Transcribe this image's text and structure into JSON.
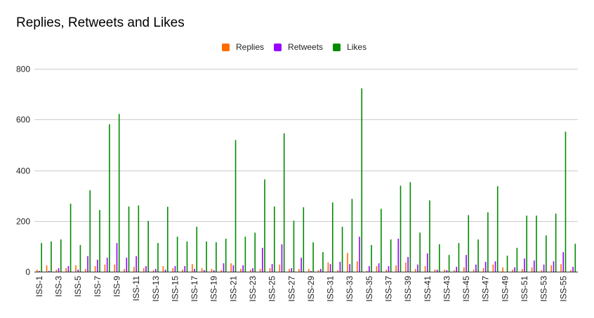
{
  "chart_data": {
    "type": "bar",
    "title": "Replies, Retweets and Likes",
    "xlabel": "",
    "ylabel": "",
    "ylim": [
      0,
      800
    ],
    "yticks": [
      0,
      200,
      400,
      600,
      800
    ],
    "grid": true,
    "legend_position": "top",
    "categories": [
      "ISS-1",
      "ISS-2",
      "ISS-3",
      "ISS-4",
      "ISS-5",
      "ISS-6",
      "ISS-7",
      "ISS-8",
      "ISS-9",
      "ISS-10",
      "ISS-11",
      "ISS-12",
      "ISS-13",
      "ISS-14",
      "ISS-15",
      "ISS-16",
      "ISS-17",
      "ISS-18",
      "ISS-19",
      "ISS-20",
      "ISS-21",
      "ISS-22",
      "ISS-23",
      "ISS-24",
      "ISS-25",
      "ISS-26",
      "ISS-27",
      "ISS-28",
      "ISS-29",
      "ISS-30",
      "ISS-31",
      "ISS-32",
      "ISS-33",
      "ISS-34",
      "ISS-35",
      "ISS-36",
      "ISS-37",
      "ISS-38",
      "ISS-39",
      "ISS-40",
      "ISS-41",
      "ISS-42",
      "ISS-43",
      "ISS-44",
      "ISS-45",
      "ISS-46",
      "ISS-47",
      "ISS-48",
      "ISS-49",
      "ISS-50",
      "ISS-51",
      "ISS-52",
      "ISS-53",
      "ISS-54",
      "ISS-55",
      "ISS-56"
    ],
    "x_tick_labels_shown": "every other category (odd)",
    "series": [
      {
        "name": "Replies",
        "color": "#ff6d01",
        "values": [
          8,
          25,
          8,
          14,
          25,
          11,
          22,
          28,
          28,
          11,
          19,
          14,
          6,
          22,
          14,
          8,
          30,
          14,
          11,
          6,
          33,
          11,
          8,
          11,
          14,
          28,
          11,
          11,
          11,
          6,
          36,
          6,
          74,
          41,
          3,
          22,
          8,
          25,
          36,
          11,
          22,
          8,
          8,
          6,
          17,
          8,
          14,
          28,
          17,
          8,
          11,
          17,
          6,
          25,
          30,
          6
        ]
      },
      {
        "name": "Retweets",
        "color": "#9900ff",
        "values": [
          3,
          3,
          14,
          22,
          8,
          61,
          47,
          55,
          113,
          55,
          61,
          22,
          11,
          8,
          22,
          22,
          11,
          6,
          6,
          33,
          25,
          25,
          14,
          94,
          30,
          108,
          14,
          55,
          3,
          11,
          30,
          39,
          30,
          138,
          22,
          33,
          22,
          130,
          58,
          28,
          72,
          8,
          6,
          19,
          66,
          28,
          39,
          41,
          0,
          17,
          52,
          44,
          28,
          41,
          77,
          19
        ]
      },
      {
        "name": "Likes",
        "color": "#008b00",
        "values": [
          113,
          119,
          127,
          268,
          105,
          321,
          243,
          581,
          622,
          257,
          261,
          200,
          113,
          256,
          138,
          119,
          177,
          119,
          116,
          130,
          519,
          138,
          154,
          364,
          257,
          546,
          201,
          254,
          116,
          77,
          273,
          177,
          287,
          723,
          105,
          248,
          127,
          339,
          353,
          154,
          281,
          108,
          66,
          113,
          223,
          127,
          234,
          337,
          63,
          94,
          221,
          221,
          143,
          229,
          552,
          110
        ]
      }
    ]
  }
}
